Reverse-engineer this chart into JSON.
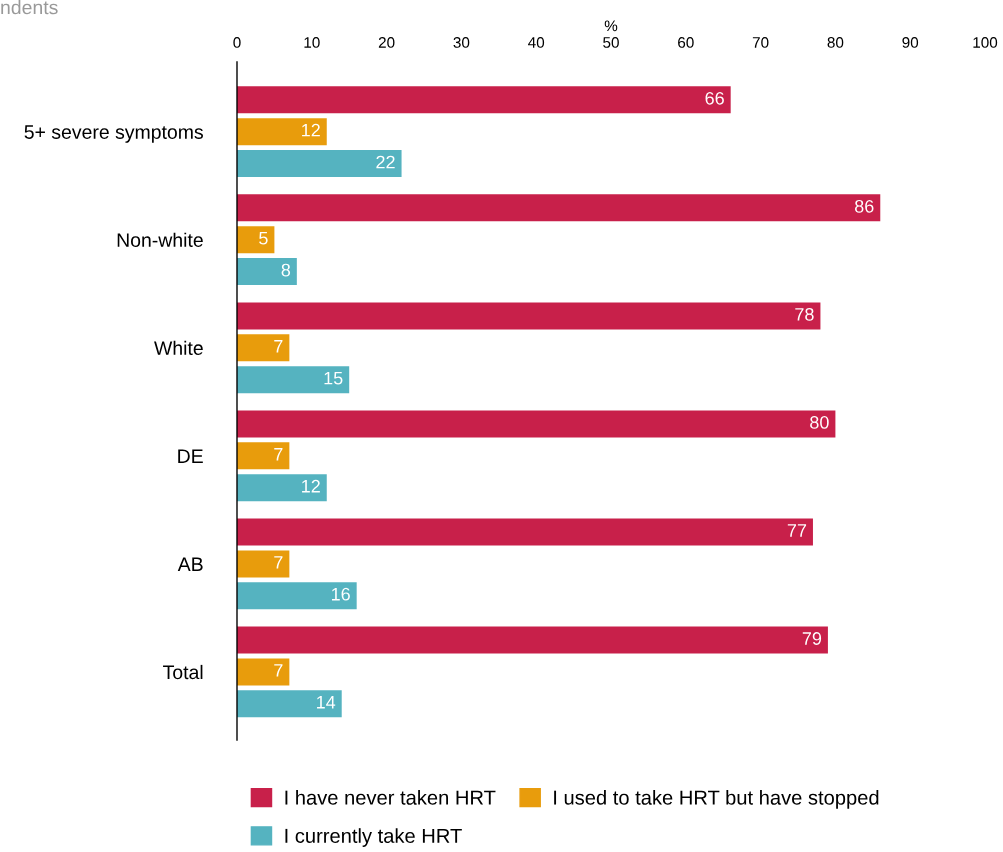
{
  "chart_data": {
    "type": "bar",
    "orientation": "horizontal",
    "xlabel": "%",
    "categories": [
      "5+ severe symptoms",
      "Non-white",
      "White",
      "DE",
      "AB",
      "Total"
    ],
    "series": [
      {
        "name": "I have never taken HRT",
        "color": "#c8204a",
        "values": [
          66,
          86,
          78,
          80,
          77,
          79
        ]
      },
      {
        "name": "I used to take HRT but have stopped",
        "color": "#e89c0c",
        "values": [
          12,
          5,
          7,
          7,
          7,
          7
        ]
      },
      {
        "name": "I currently take HRT",
        "color": "#55b3c0",
        "values": [
          22,
          8,
          15,
          12,
          16,
          14
        ]
      }
    ],
    "xlim": [
      0,
      100
    ],
    "xticks": [
      0,
      10,
      20,
      30,
      40,
      50,
      60,
      70,
      80,
      90,
      100
    ],
    "data_labels": true,
    "grid": false,
    "legend": "bottom",
    "annotations": [
      "ndents"
    ]
  }
}
